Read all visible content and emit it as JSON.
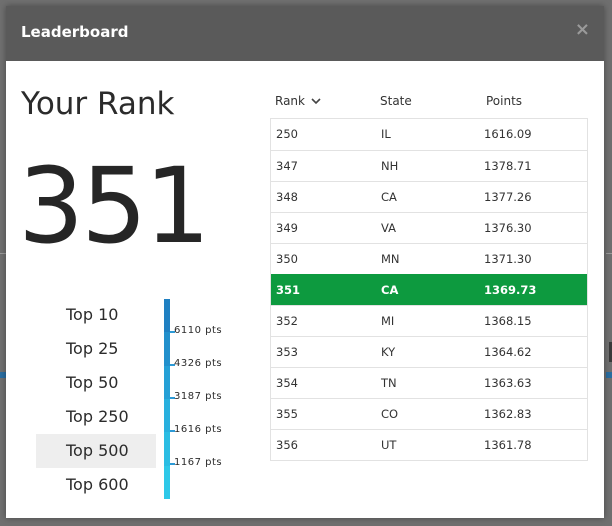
{
  "modal": {
    "title": "Leaderboard",
    "close_label": "×"
  },
  "rank": {
    "heading": "Your Rank",
    "value": "351"
  },
  "tiers": [
    {
      "label": "Top 10",
      "points": "6110 pts"
    },
    {
      "label": "Top 25",
      "points": "4326 pts"
    },
    {
      "label": "Top 50",
      "points": "3187 pts"
    },
    {
      "label": "Top 250",
      "points": "1616 pts"
    },
    {
      "label": "Top 500",
      "points": "1167 pts",
      "selected": true
    },
    {
      "label": "Top 600"
    }
  ],
  "table": {
    "headers": {
      "rank": "Rank",
      "state": "State",
      "points": "Points"
    },
    "sort_column": "rank",
    "sort_direction": "descending",
    "rows": [
      {
        "rank": "250",
        "state": "IL",
        "points": "1616.09"
      },
      {
        "rank": "347",
        "state": "NH",
        "points": "1378.71"
      },
      {
        "rank": "348",
        "state": "CA",
        "points": "1377.26"
      },
      {
        "rank": "349",
        "state": "VA",
        "points": "1376.30"
      },
      {
        "rank": "350",
        "state": "MN",
        "points": "1371.30"
      },
      {
        "rank": "351",
        "state": "CA",
        "points": "1369.73",
        "highlight": true
      },
      {
        "rank": "352",
        "state": "MI",
        "points": "1368.15"
      },
      {
        "rank": "353",
        "state": "KY",
        "points": "1364.62"
      },
      {
        "rank": "354",
        "state": "TN",
        "points": "1363.63"
      },
      {
        "rank": "355",
        "state": "CO",
        "points": "1362.83"
      },
      {
        "rank": "356",
        "state": "UT",
        "points": "1361.78"
      }
    ]
  },
  "colors": {
    "header_bg": "#5a5a5a",
    "highlight_row": "#0d9a3f",
    "tier_bar_dark": "#1f7fc0",
    "tier_bar_light": "#2bc4e6"
  }
}
